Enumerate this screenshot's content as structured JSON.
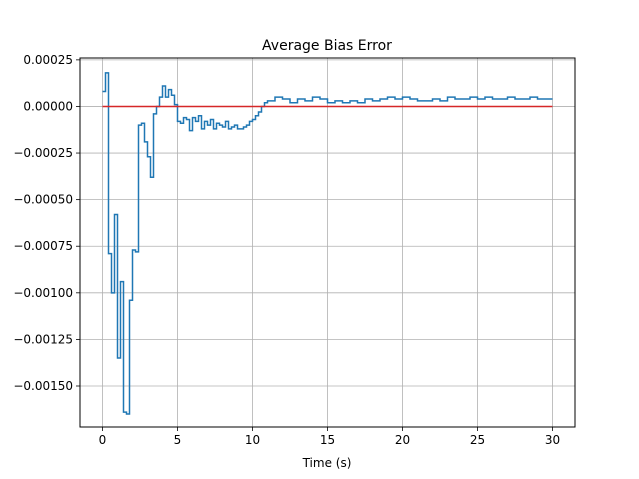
{
  "chart_data": {
    "type": "line",
    "title": "Average Bias Error",
    "xlabel": "Time (s)",
    "ylabel": "",
    "xlim": [
      -1.5,
      31.5
    ],
    "ylim": [
      -0.00172,
      0.00026
    ],
    "xticks": [
      0,
      5,
      10,
      15,
      20,
      25,
      30
    ],
    "xtick_labels": [
      "0",
      "5",
      "10",
      "15",
      "20",
      "25",
      "30"
    ],
    "yticks": [
      0.00025,
      0.0,
      -0.00025,
      -0.0005,
      -0.00075,
      -0.001,
      -0.00125,
      -0.0015
    ],
    "ytick_labels": [
      "0.00025",
      "0.00000",
      "−0.00025",
      "−0.00050",
      "−0.00075",
      "−0.00100",
      "−0.00125",
      "−0.00150"
    ],
    "grid": true,
    "legend": "none",
    "series": [
      {
        "color": "#1f77b4",
        "style": "step",
        "x": [
          0.0,
          0.2,
          0.4,
          0.6,
          0.8,
          1.0,
          1.2,
          1.4,
          1.6,
          1.8,
          2.0,
          2.2,
          2.4,
          2.6,
          2.8,
          3.0,
          3.2,
          3.4,
          3.6,
          3.8,
          4.0,
          4.2,
          4.4,
          4.6,
          4.8,
          5.0,
          5.2,
          5.4,
          5.6,
          5.8,
          6.0,
          6.2,
          6.4,
          6.6,
          6.8,
          7.0,
          7.2,
          7.4,
          7.6,
          7.8,
          8.0,
          8.2,
          8.4,
          8.6,
          8.8,
          9.0,
          9.2,
          9.4,
          9.6,
          9.8,
          10.0,
          10.2,
          10.4,
          10.6,
          10.8,
          11.0,
          11.5,
          12.0,
          12.5,
          13.0,
          13.5,
          14.0,
          14.5,
          15.0,
          15.5,
          16.0,
          16.5,
          17.0,
          17.5,
          18.0,
          18.5,
          19.0,
          19.5,
          20.0,
          20.5,
          21.0,
          21.5,
          22.0,
          22.5,
          23.0,
          23.5,
          24.0,
          24.5,
          25.0,
          25.5,
          26.0,
          26.5,
          27.0,
          27.5,
          28.0,
          28.5,
          29.0,
          29.5,
          30.0
        ],
        "y": [
          8e-05,
          0.00018,
          -0.00079,
          -0.001,
          -0.00058,
          -0.00135,
          -0.00094,
          -0.00164,
          -0.00165,
          -0.00104,
          -0.00077,
          -0.00078,
          -0.0001,
          -9e-05,
          -0.00019,
          -0.00027,
          -0.00038,
          -4e-05,
          0.0,
          5e-05,
          0.00011,
          5e-05,
          9e-05,
          6e-05,
          1e-05,
          -8e-05,
          -9e-05,
          -6e-05,
          -7e-05,
          -0.00013,
          -6e-05,
          -8e-05,
          -5e-05,
          -0.00012,
          -8e-05,
          -0.0001,
          -7e-05,
          -0.00012,
          -9e-05,
          -0.0001,
          -0.00011,
          -8e-05,
          -0.00012,
          -0.00011,
          -0.0001,
          -0.00012,
          -0.00012,
          -0.00011,
          -0.0001,
          -8e-05,
          -7e-05,
          -5e-05,
          -3e-05,
          0.0,
          2e-05,
          3e-05,
          5e-05,
          4e-05,
          2e-05,
          4e-05,
          3e-05,
          5e-05,
          4e-05,
          2e-05,
          3e-05,
          2e-05,
          3e-05,
          2e-05,
          4e-05,
          3e-05,
          4e-05,
          5e-05,
          4e-05,
          5e-05,
          4e-05,
          3e-05,
          3e-05,
          4e-05,
          3e-05,
          5e-05,
          4e-05,
          4e-05,
          5e-05,
          4e-05,
          5e-05,
          4e-05,
          4e-05,
          5e-05,
          4e-05,
          4e-05,
          5e-05,
          4e-05,
          4e-05,
          4e-05
        ]
      },
      {
        "color": "#d62728",
        "style": "line",
        "x": [
          0.0,
          30.0
        ],
        "y": [
          0.0,
          0.0
        ]
      }
    ]
  }
}
